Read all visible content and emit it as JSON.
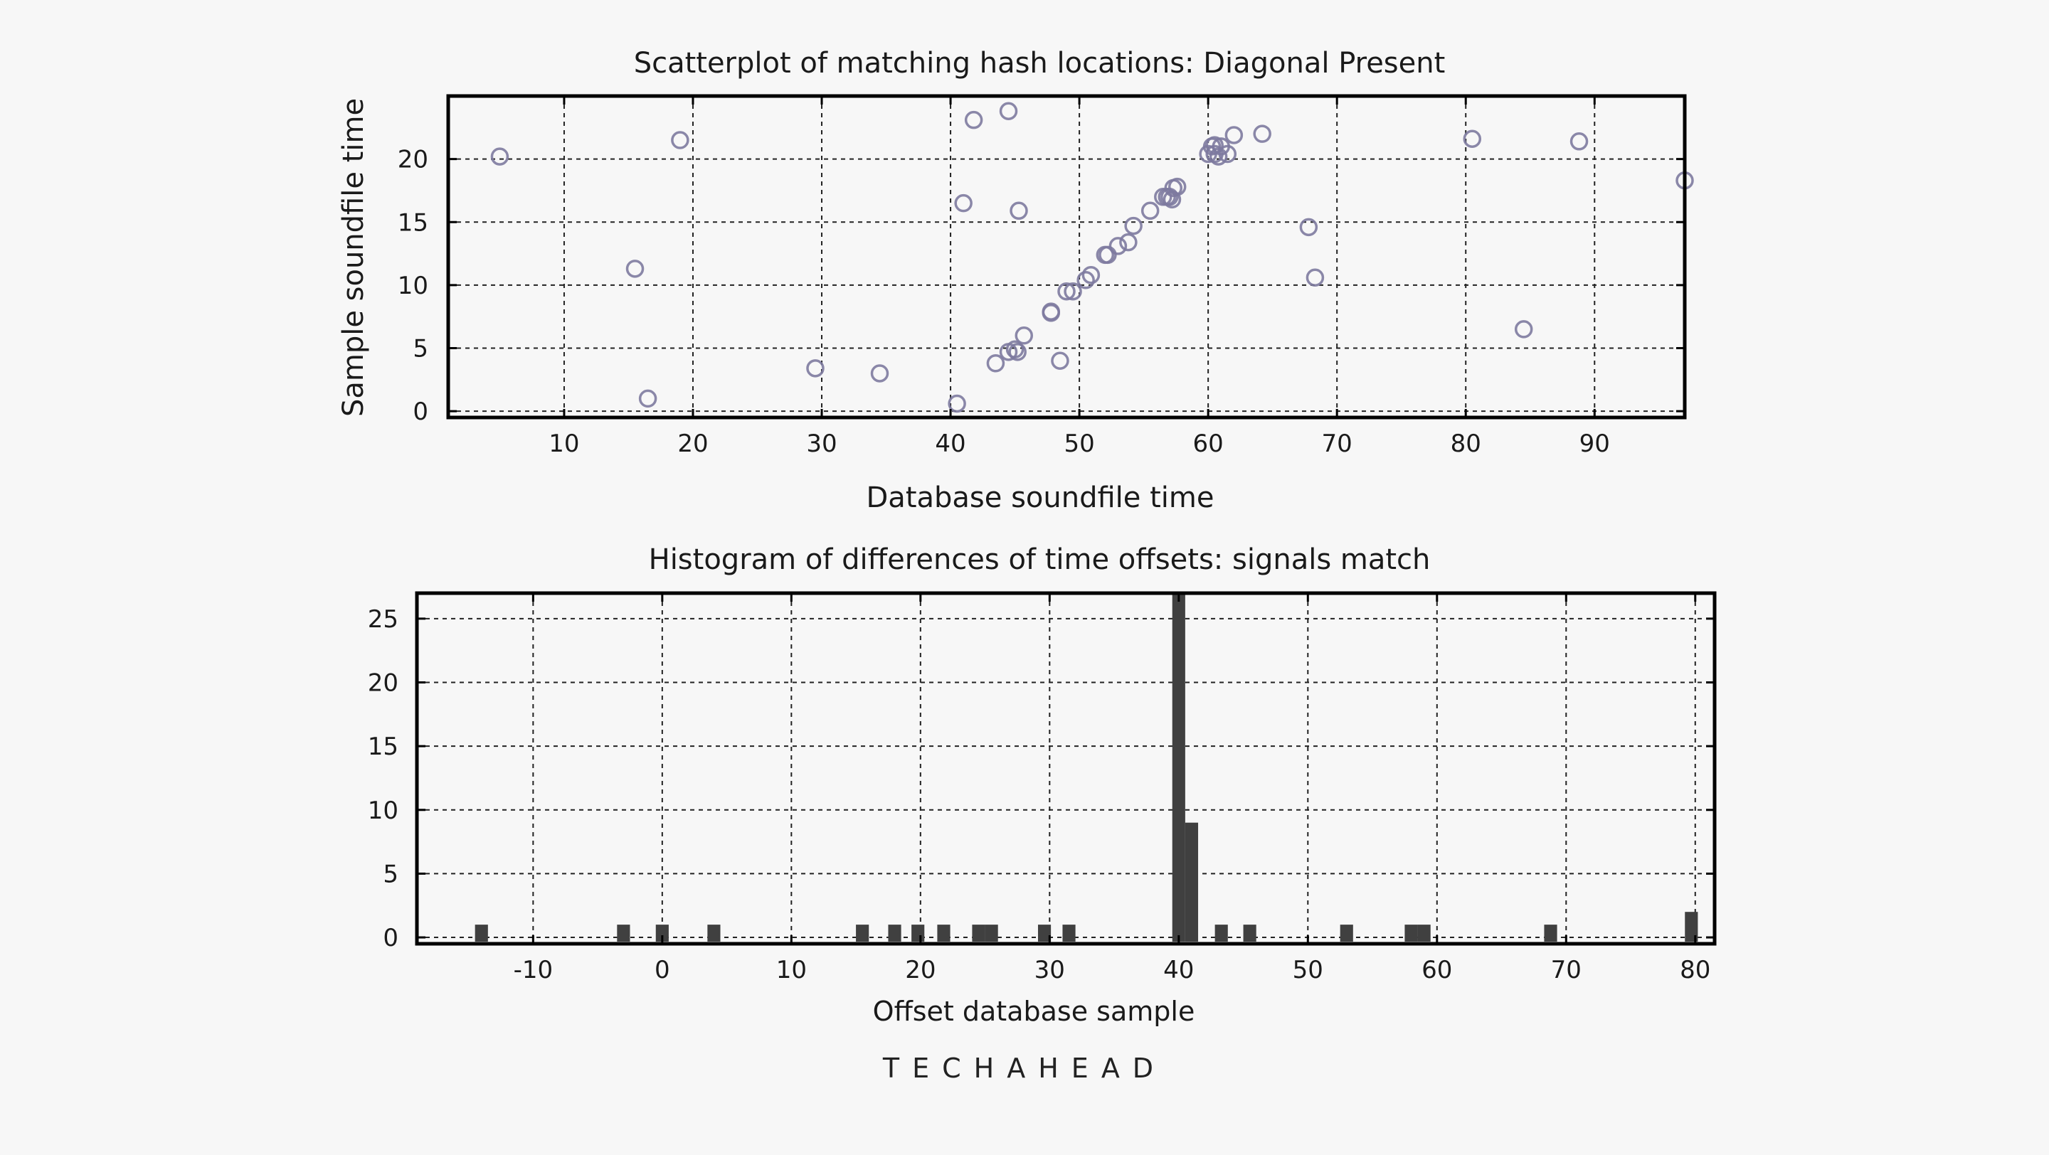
{
  "colors": {
    "background": "#f7f7f7",
    "scatter_marker": "#7d7a9e",
    "scatter_marker_dark": "#2a2850",
    "histogram_bar": "#404040",
    "axis": "#000000",
    "grid": "#222222"
  },
  "brand": {
    "text": "TECHAHEAD"
  },
  "chart_data": [
    {
      "type": "scatter",
      "title": "Scatterplot of matching hash locations: Diagonal Present",
      "xlabel": "Database soundfile time",
      "ylabel": "Sample soundfile time",
      "xlim": [
        1,
        97
      ],
      "ylim": [
        -0.5,
        25
      ],
      "xticks": [
        10,
        20,
        30,
        40,
        50,
        60,
        70,
        80,
        90
      ],
      "yticks": [
        0,
        5,
        10,
        15,
        20
      ],
      "grid": true,
      "points": [
        {
          "x": 5,
          "y": 20.2
        },
        {
          "x": 15.5,
          "y": 11.3
        },
        {
          "x": 16.5,
          "y": 1.0
        },
        {
          "x": 19,
          "y": 21.5
        },
        {
          "x": 29.5,
          "y": 3.4
        },
        {
          "x": 34.5,
          "y": 3.0
        },
        {
          "x": 40.5,
          "y": 0.6
        },
        {
          "x": 41,
          "y": 16.5
        },
        {
          "x": 41.8,
          "y": 23.1
        },
        {
          "x": 43.5,
          "y": 3.8
        },
        {
          "x": 44.5,
          "y": 23.8
        },
        {
          "x": 44.5,
          "y": 4.7
        },
        {
          "x": 45,
          "y": 4.9
        },
        {
          "x": 45.2,
          "y": 4.7
        },
        {
          "x": 45.3,
          "y": 15.9
        },
        {
          "x": 45.7,
          "y": 6.0
        },
        {
          "x": 47.8,
          "y": 7.8
        },
        {
          "x": 47.8,
          "y": 7.9
        },
        {
          "x": 48.5,
          "y": 4.0
        },
        {
          "x": 49,
          "y": 9.5
        },
        {
          "x": 49.5,
          "y": 9.5
        },
        {
          "x": 50.5,
          "y": 10.4
        },
        {
          "x": 50.9,
          "y": 10.8
        },
        {
          "x": 52,
          "y": 12.4
        },
        {
          "x": 52.2,
          "y": 12.4
        },
        {
          "x": 53,
          "y": 13.1
        },
        {
          "x": 53.8,
          "y": 13.4
        },
        {
          "x": 54.2,
          "y": 14.7
        },
        {
          "x": 55.5,
          "y": 15.9
        },
        {
          "x": 56.5,
          "y": 17.0
        },
        {
          "x": 56.8,
          "y": 17.0
        },
        {
          "x": 57,
          "y": 17.0
        },
        {
          "x": 57.2,
          "y": 16.8
        },
        {
          "x": 57.3,
          "y": 17.7
        },
        {
          "x": 57.6,
          "y": 17.8
        },
        {
          "x": 60,
          "y": 20.4
        },
        {
          "x": 60.3,
          "y": 21.0
        },
        {
          "x": 60.5,
          "y": 20.4
        },
        {
          "x": 60.5,
          "y": 21.1
        },
        {
          "x": 60.8,
          "y": 20.2
        },
        {
          "x": 61,
          "y": 21.0
        },
        {
          "x": 61.5,
          "y": 20.4
        },
        {
          "x": 62,
          "y": 21.9
        },
        {
          "x": 64.2,
          "y": 22.0
        },
        {
          "x": 67.8,
          "y": 14.6
        },
        {
          "x": 68.3,
          "y": 10.6
        },
        {
          "x": 80.5,
          "y": 21.6
        },
        {
          "x": 84.5,
          "y": 6.5
        },
        {
          "x": 88.8,
          "y": 21.4
        },
        {
          "x": 97,
          "y": 18.3
        }
      ]
    },
    {
      "type": "bar",
      "title": "Histogram of differences of time offsets: signals match",
      "xlabel": "Offset database sample",
      "ylabel": "",
      "xlim": [
        -19,
        81.5
      ],
      "ylim": [
        -0.5,
        27
      ],
      "xticks": [
        -10,
        0,
        10,
        20,
        30,
        40,
        50,
        60,
        70,
        80
      ],
      "yticks": [
        0,
        5,
        10,
        15,
        20,
        25
      ],
      "grid": true,
      "bin_width": 1,
      "bins": [
        {
          "x": -14,
          "count": 1
        },
        {
          "x": -3,
          "count": 1
        },
        {
          "x": 0,
          "count": 1
        },
        {
          "x": 4,
          "count": 1
        },
        {
          "x": 15.5,
          "count": 1
        },
        {
          "x": 18,
          "count": 1
        },
        {
          "x": 19.8,
          "count": 1
        },
        {
          "x": 21.8,
          "count": 1
        },
        {
          "x": 24.5,
          "count": 1
        },
        {
          "x": 25.5,
          "count": 1
        },
        {
          "x": 29.6,
          "count": 1
        },
        {
          "x": 31.5,
          "count": 1
        },
        {
          "x": 40,
          "count": 27
        },
        {
          "x": 41,
          "count": 9
        },
        {
          "x": 43.3,
          "count": 1
        },
        {
          "x": 45.5,
          "count": 1
        },
        {
          "x": 53,
          "count": 1
        },
        {
          "x": 58,
          "count": 1
        },
        {
          "x": 59,
          "count": 1
        },
        {
          "x": 68.8,
          "count": 1
        },
        {
          "x": 79.7,
          "count": 2
        }
      ]
    }
  ]
}
